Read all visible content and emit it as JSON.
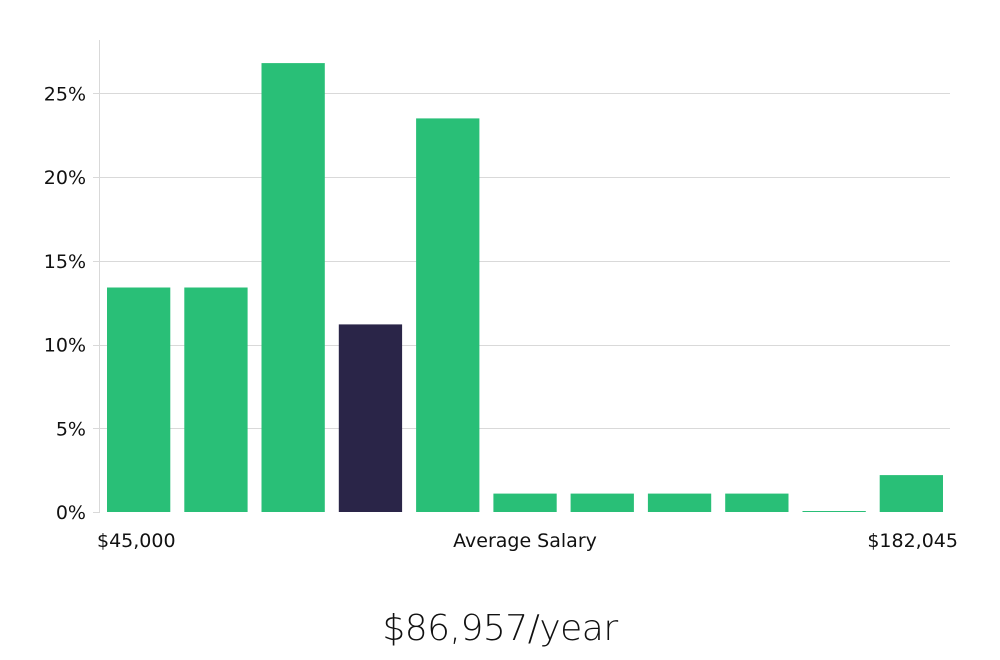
{
  "chart_data": {
    "type": "bar",
    "values": [
      13.4,
      13.4,
      26.8,
      11.2,
      23.5,
      1.1,
      1.1,
      1.1,
      1.1,
      0.05,
      2.2
    ],
    "highlight_index": 3,
    "ylim": [
      0,
      28
    ],
    "yticks": [
      0,
      5,
      10,
      15,
      20,
      25
    ],
    "ytick_labels": [
      "0%",
      "5%",
      "10%",
      "15%",
      "20%",
      "25%"
    ],
    "x_min_label": "$45,000",
    "x_center_label": "Average Salary",
    "x_max_label": "$182,045",
    "grid": true,
    "colors": {
      "bar": "#29bf77",
      "highlight": "#2a2548"
    }
  },
  "salary": {
    "value": "$86,957/year"
  }
}
